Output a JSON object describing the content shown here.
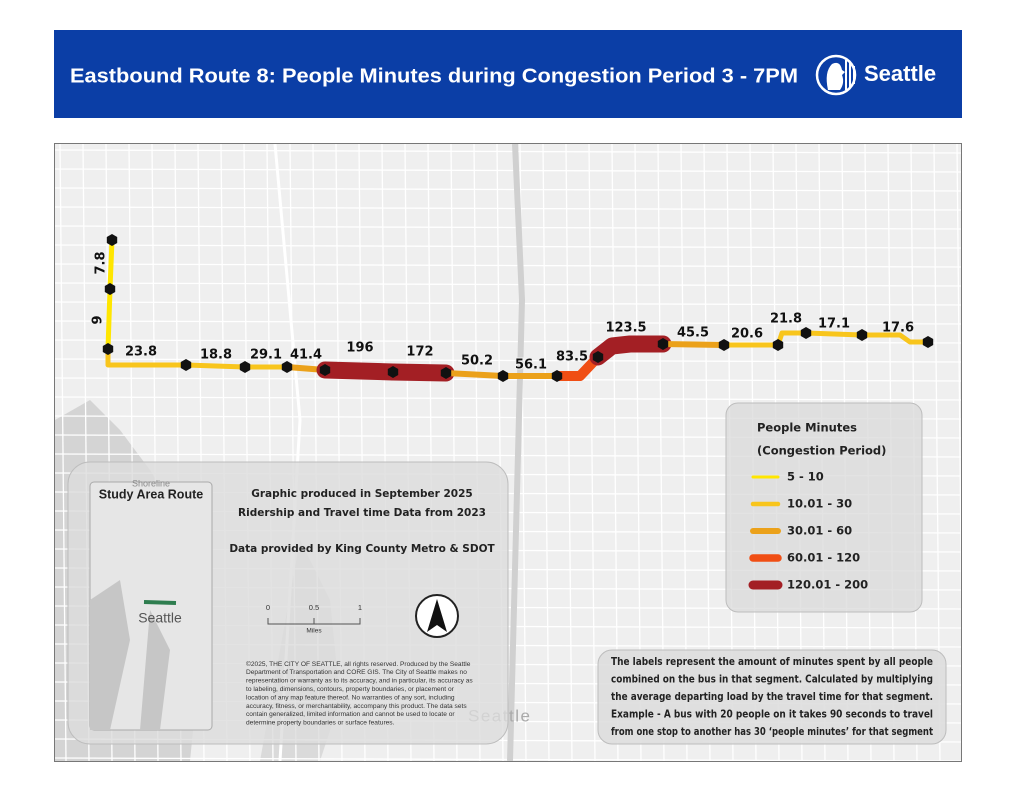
{
  "header": {
    "title": "Eastbound Route 8: People Minutes during Congestion Period 3 - 7PM",
    "logo_text": "Seattle"
  },
  "map": {
    "basemap_label": "Seattle",
    "segments": [
      {
        "value": 7.8,
        "color": "#ffe600"
      },
      {
        "value": 9,
        "color": "#ffe600"
      },
      {
        "value": 23.8,
        "color": "#f8c51c"
      },
      {
        "value": 18.8,
        "color": "#f8c51c"
      },
      {
        "value": 29.1,
        "color": "#f8c51c"
      },
      {
        "value": 41.4,
        "color": "#eba11a"
      },
      {
        "value": 196,
        "color": "#a31f24"
      },
      {
        "value": 172,
        "color": "#a31f24"
      },
      {
        "value": 50.2,
        "color": "#eba11a"
      },
      {
        "value": 56.1,
        "color": "#eba11a"
      },
      {
        "value": 83.5,
        "color": "#f04e14"
      },
      {
        "value": 123.5,
        "color": "#a31f24"
      },
      {
        "value": 45.5,
        "color": "#eba11a"
      },
      {
        "value": 20.6,
        "color": "#f8c51c"
      },
      {
        "value": 21.8,
        "color": "#f8c51c"
      },
      {
        "value": 17.1,
        "color": "#f8c51c"
      },
      {
        "value": 17.6,
        "color": "#f8c51c"
      }
    ]
  },
  "legend": {
    "title": "People Minutes",
    "subtitle": "(Congestion Period)",
    "items": [
      {
        "label": "5 - 10",
        "color": "#ffe600"
      },
      {
        "label": "10.01 - 30",
        "color": "#f8c51c"
      },
      {
        "label": "30.01 - 60",
        "color": "#eba11a"
      },
      {
        "label": "60.01 - 120",
        "color": "#f04e14"
      },
      {
        "label": "120.01 - 200",
        "color": "#a31f24"
      }
    ]
  },
  "info": {
    "lines": [
      "Graphic produced in September 2025",
      "Ridership and Travel time Data from 2023",
      "Data provided by King County Metro & SDOT"
    ],
    "inset": {
      "title": "Study Area Route",
      "labels": [
        "Shoreline",
        "Seattle"
      ]
    },
    "scale": {
      "ticks": [
        0,
        0.5,
        1
      ],
      "unit": "Miles"
    },
    "copyright": [
      "©2025, THE CITY OF SEATTLE, all rights reserved. Produced by the Seattle",
      "Department of Transportation and CORE GIS. The City of Seattle makes no",
      "representation or warranty as to its accuracy, and in particular, its accuracy as",
      "to labeling, dimensions, contours, property boundaries, or placement or",
      "location of any map feature thereof. No warranties of any sort, including",
      "accuracy, fitness, or merchantability, accompany this product. The data sets",
      "contain generalized, limited information and cannot be used to locate or",
      "determine property boundaries or surface features."
    ]
  },
  "note": {
    "lines": [
      "The labels represent the amount of minutes spent by all people",
      "combined on the bus in that segment. Calculated by multiplying",
      "the average departing load by the travel time for that segment.",
      "Example - A bus with 20 people on it takes 90 seconds to travel",
      "from one stop to another has 30 ‘people minutes’ for that segment"
    ]
  }
}
